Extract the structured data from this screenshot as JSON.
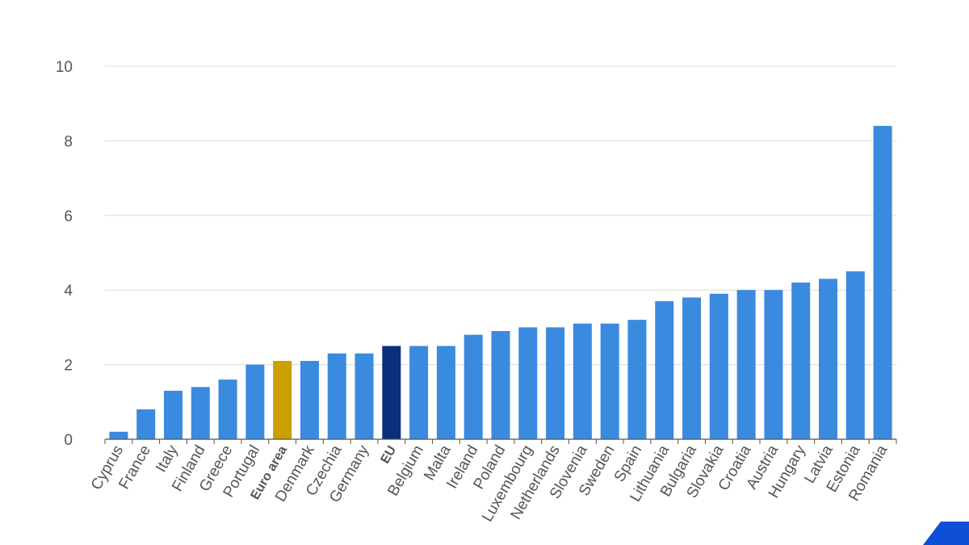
{
  "chart_data": {
    "type": "bar",
    "categories": [
      "Cyprus",
      "France",
      "Italy",
      "Finland",
      "Greece",
      "Portugal",
      "Euro area",
      "Denmark",
      "Czechia",
      "Germany",
      "EU",
      "Belgium",
      "Malta",
      "Ireland",
      "Poland",
      "Luxembourg",
      "Netherlands",
      "Slovenia",
      "Sweden",
      "Spain",
      "Lithuania",
      "Bulgaria",
      "Slovakia",
      "Croatia",
      "Austria",
      "Hungary",
      "Latvia",
      "Estonia",
      "Romania"
    ],
    "values": [
      0.2,
      0.8,
      1.3,
      1.4,
      1.6,
      2.0,
      2.1,
      2.1,
      2.3,
      2.3,
      2.5,
      2.5,
      2.5,
      2.8,
      2.9,
      3.0,
      3.0,
      3.1,
      3.1,
      3.2,
      3.7,
      3.8,
      3.9,
      4.0,
      4.0,
      4.2,
      4.3,
      4.5,
      8.4
    ],
    "highlight": {
      "Euro area": "#c9a000",
      "EU": "#0b2f7a"
    },
    "bold_categories": [
      "Euro area",
      "EU"
    ],
    "bar_color": "#3a8ae0",
    "ylim": [
      0,
      10
    ],
    "yticks": [
      "0",
      "2",
      "4",
      "6",
      "8",
      "10"
    ],
    "grid": true,
    "title": "",
    "xlabel": "",
    "ylabel": ""
  },
  "logo_color": "#0f4fd6"
}
